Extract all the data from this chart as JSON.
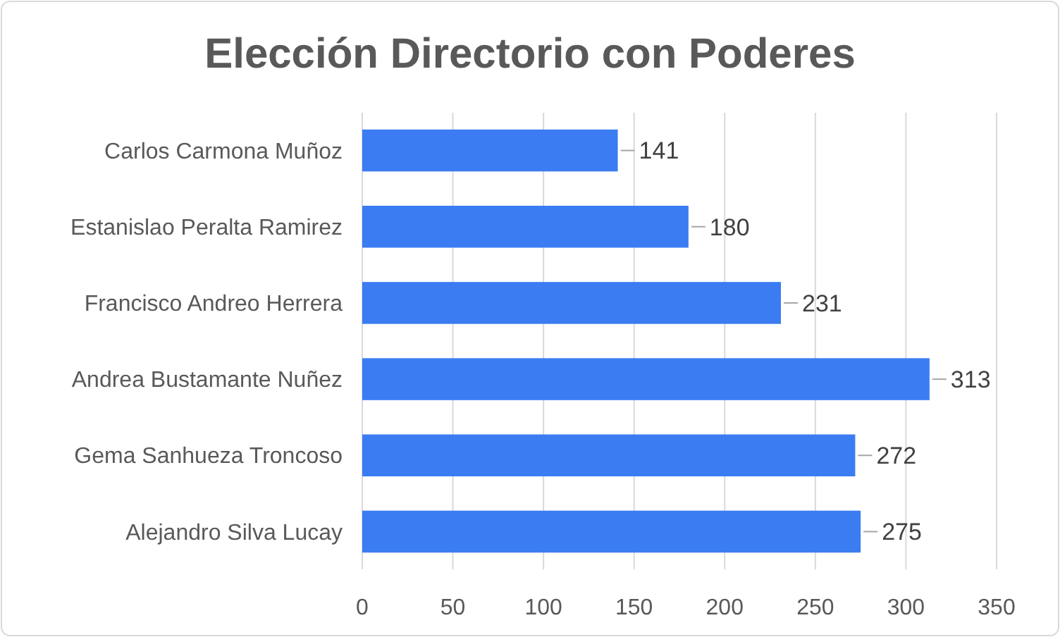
{
  "chart_data": {
    "type": "bar",
    "orientation": "horizontal",
    "title": "Elección Directorio  con Poderes",
    "categories": [
      "Carlos Carmona Muñoz",
      "Estanislao Peralta Ramirez",
      "Francisco Andreo Herrera",
      "Andrea Bustamante Nuñez",
      "Gema Sanhueza Troncoso",
      "Alejandro Silva Lucay"
    ],
    "values": [
      141,
      180,
      231,
      313,
      272,
      275
    ],
    "color": "#3b7cf2",
    "xlim": [
      0,
      350
    ],
    "xticks": [
      0,
      50,
      100,
      150,
      200,
      250,
      300,
      350
    ],
    "grid": "x",
    "data_labels": true
  }
}
